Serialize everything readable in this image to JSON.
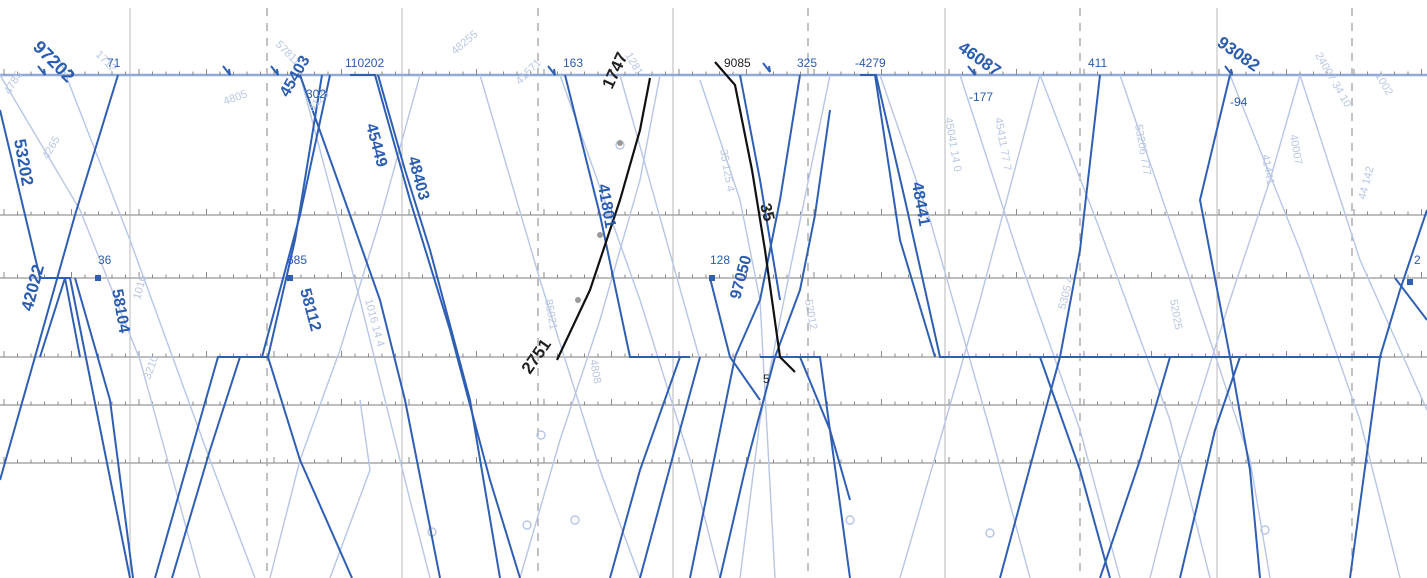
{
  "colors": {
    "background": "#ffffff",
    "grid_major": "#b9b9b9",
    "grid_minor": "#9a9a9a",
    "track_line": "#8fa9d8",
    "train_primary": "#2f5fb3",
    "train_faint": "#b7c6e4",
    "train_selected": "#111111",
    "label_primary": "#2a5cb0",
    "label_faint": "#b9c7e2",
    "label_dark": "#222222",
    "marker": "#2f5fb3"
  },
  "labels_primary": [
    {
      "id": "97202",
      "text": "97202"
    },
    {
      "id": "71",
      "text": "71"
    },
    {
      "id": "110202",
      "text": "110202"
    },
    {
      "id": "45403",
      "text": "45403"
    },
    {
      "id": "302",
      "text": "302"
    },
    {
      "id": "163",
      "text": "163"
    },
    {
      "id": "325",
      "text": "325"
    },
    {
      "id": "4279",
      "text": "-4279"
    },
    {
      "id": "46087",
      "text": "46087"
    },
    {
      "id": "177",
      "text": "-177"
    },
    {
      "id": "411",
      "text": "411"
    },
    {
      "id": "93082",
      "text": "93082"
    },
    {
      "id": "94",
      "text": "-94"
    },
    {
      "id": "53202",
      "text": "53202"
    },
    {
      "id": "45449",
      "text": "45449"
    },
    {
      "id": "48403",
      "text": "48403"
    },
    {
      "id": "41801",
      "text": "41801"
    },
    {
      "id": "48441",
      "text": "48441"
    },
    {
      "id": "36",
      "text": "36"
    },
    {
      "id": "685",
      "text": "685"
    },
    {
      "id": "42022",
      "text": "42022"
    },
    {
      "id": "58104",
      "text": "58104"
    },
    {
      "id": "58112",
      "text": "58112"
    },
    {
      "id": "128",
      "text": "128"
    },
    {
      "id": "97050",
      "text": "97050"
    },
    {
      "id": "2",
      "text": "2"
    }
  ],
  "labels_dark": [
    {
      "id": "1747",
      "text": "1747"
    },
    {
      "id": "9085",
      "text": "9085"
    },
    {
      "id": "35",
      "text": "35"
    },
    {
      "id": "2751",
      "text": "2751"
    },
    {
      "id": "5",
      "text": "5"
    }
  ],
  "labels_faint": [
    {
      "id": "f1",
      "text": "4785"
    },
    {
      "id": "f2",
      "text": "4265"
    },
    {
      "id": "f3",
      "text": "1712"
    },
    {
      "id": "f4",
      "text": "4805"
    },
    {
      "id": "f5",
      "text": "57811"
    },
    {
      "id": "f6",
      "text": "3123"
    },
    {
      "id": "f7",
      "text": "48255"
    },
    {
      "id": "f8",
      "text": "41571"
    },
    {
      "id": "f9",
      "text": "1281"
    },
    {
      "id": "f10",
      "text": "35 125 4"
    },
    {
      "id": "f11",
      "text": "45041 14 0"
    },
    {
      "id": "f12",
      "text": "45411 77 7"
    },
    {
      "id": "f13",
      "text": "53206 777"
    },
    {
      "id": "f14",
      "text": "41441"
    },
    {
      "id": "f15",
      "text": "40007"
    },
    {
      "id": "f16",
      "text": "24007 34 10"
    },
    {
      "id": "f17",
      "text": "1002"
    },
    {
      "id": "f18",
      "text": "1016"
    },
    {
      "id": "f19",
      "text": "3210"
    },
    {
      "id": "f20",
      "text": "1016 14 4"
    },
    {
      "id": "f21",
      "text": "85021"
    },
    {
      "id": "f22",
      "text": "4808"
    },
    {
      "id": "f23",
      "text": "52012"
    },
    {
      "id": "f24",
      "text": "5305 4"
    },
    {
      "id": "f25",
      "text": "52025"
    },
    {
      "id": "f26",
      "text": "44 142"
    }
  ]
}
